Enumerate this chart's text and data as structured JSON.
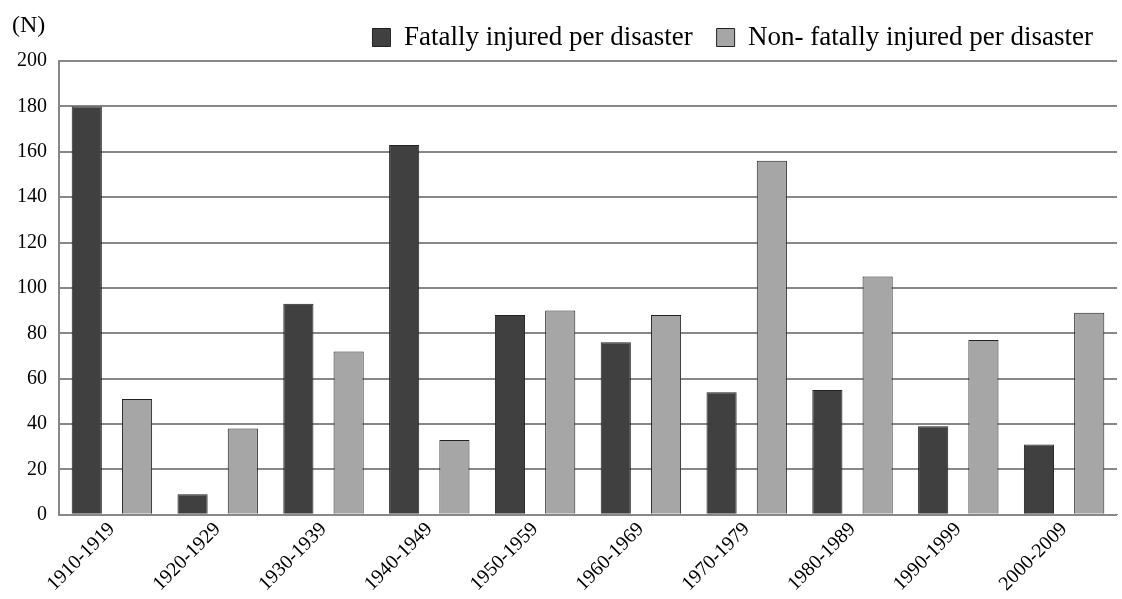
{
  "chart_data": {
    "type": "bar",
    "ylabel": "(N)",
    "categories": [
      "1910-1919",
      "1920-1929",
      "1930-1939",
      "1940-1949",
      "1950-1959",
      "1960-1969",
      "1970-1979",
      "1980-1989",
      "1990-1999",
      "2000-2009"
    ],
    "series": [
      {
        "name": "Fatally injured per disaster",
        "color": "#404040",
        "values": [
          180,
          9,
          93,
          163,
          88,
          76,
          54,
          55,
          39,
          31
        ]
      },
      {
        "name": "Non- fatally injured per disaster",
        "color": "#a6a6a6",
        "values": [
          51,
          38,
          72,
          33,
          90,
          88,
          156,
          105,
          77,
          89
        ]
      }
    ],
    "ylim": [
      0,
      200
    ],
    "yticks": [
      0,
      20,
      40,
      60,
      80,
      100,
      120,
      140,
      160,
      180,
      200
    ],
    "grid": "y",
    "legend": "top"
  }
}
